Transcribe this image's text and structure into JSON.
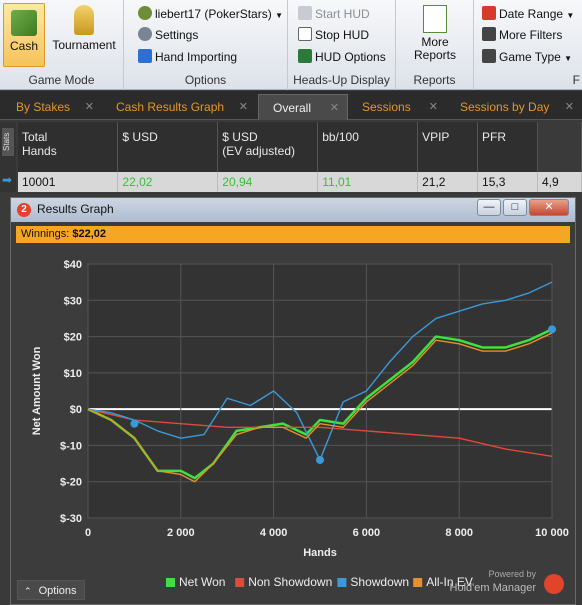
{
  "ribbon": {
    "game_mode": {
      "title": "Game Mode",
      "cash": "Cash",
      "tournament": "Tournament"
    },
    "options": {
      "title": "Options",
      "player": "liebert17 (PokerStars)",
      "settings": "Settings",
      "hand_importing": "Hand Importing"
    },
    "hud": {
      "title": "Heads-Up Display",
      "start": "Start HUD",
      "stop": "Stop HUD",
      "options": "HUD Options"
    },
    "reports": {
      "title": "Reports",
      "more_reports": "More\nReports",
      "date_range": "Date Range",
      "more_filters": "More Filters",
      "game_type": "Game Type",
      "cut_title": "F"
    }
  },
  "tabs": [
    {
      "label": "By Stakes",
      "active": false
    },
    {
      "label": "Cash Results Graph",
      "active": false
    },
    {
      "label": "Overall",
      "active": true
    },
    {
      "label": "Sessions",
      "active": false
    },
    {
      "label": "Sessions by Day",
      "active": false
    }
  ],
  "stats": {
    "side_label": "Stats",
    "headers": [
      "Total\nHands",
      "$ USD",
      "$ USD\n(EV adjusted)",
      "bb/100",
      "VPIP",
      "PFR",
      ""
    ],
    "row": [
      "10001",
      "22,02",
      "20,94",
      "11,01",
      "21,2",
      "15,3",
      "4,9"
    ]
  },
  "window": {
    "title": "Results Graph",
    "winnings_label": "Winnings:",
    "winnings_value": "$22,02",
    "options_label": "Options",
    "powered_by": "Powered by",
    "brand": "Hold'em Manager"
  },
  "chart_data": {
    "type": "line",
    "xlabel": "Hands",
    "ylabel": "Net Amount Won",
    "xlim": [
      0,
      10000
    ],
    "ylim": [
      -30,
      40
    ],
    "xticks": [
      "0",
      "2 000",
      "4 000",
      "6 000",
      "8 000",
      "10 000"
    ],
    "yticks": [
      "$40",
      "$30",
      "$20",
      "$10",
      "$0",
      "$-10",
      "$-20",
      "$-30"
    ],
    "grid": true,
    "legend_position": "bottom",
    "series": [
      {
        "name": "Net Won",
        "color": "#3ee23e",
        "x": [
          0,
          500,
          1000,
          1500,
          2000,
          2300,
          2700,
          3200,
          3700,
          4200,
          4700,
          5000,
          5500,
          6000,
          6500,
          7000,
          7500,
          8000,
          8500,
          9000,
          9500,
          10000
        ],
        "y": [
          0,
          -3,
          -8,
          -17,
          -17,
          -19,
          -15,
          -6,
          -5,
          -4,
          -7,
          -3,
          -4,
          3,
          8,
          13,
          20,
          19,
          17,
          17,
          19,
          22
        ]
      },
      {
        "name": "Non Showdown",
        "color": "#e04a3a",
        "x": [
          0,
          1000,
          2000,
          3000,
          4000,
          5000,
          6000,
          7000,
          8000,
          9000,
          10000
        ],
        "y": [
          0,
          -3,
          -4,
          -5,
          -5,
          -5,
          -6,
          -7,
          -8,
          -11,
          -13
        ]
      },
      {
        "name": "Showdown",
        "color": "#3a9ad9",
        "x": [
          0,
          500,
          1000,
          1500,
          2000,
          2500,
          3000,
          3500,
          4000,
          4500,
          5000,
          5500,
          6000,
          6500,
          7000,
          7500,
          8000,
          8500,
          9000,
          9500,
          10000
        ],
        "y": [
          0,
          -1,
          -3,
          -6,
          -8,
          -7,
          3,
          1,
          5,
          -1,
          -14,
          2,
          5,
          13,
          20,
          25,
          27,
          29,
          30,
          32,
          35
        ]
      },
      {
        "name": "All-In EV",
        "color": "#e8902a",
        "x": [
          0,
          500,
          1000,
          1500,
          2000,
          2300,
          2700,
          3200,
          3700,
          4200,
          4700,
          5000,
          5500,
          6000,
          6500,
          7000,
          7500,
          8000,
          8500,
          9000,
          9500,
          10000
        ],
        "y": [
          0,
          -3,
          -8,
          -17,
          -18,
          -20,
          -15,
          -7,
          -5,
          -5,
          -8,
          -4,
          -5,
          2,
          7,
          12,
          19,
          18,
          16,
          16,
          18,
          21
        ]
      }
    ]
  }
}
